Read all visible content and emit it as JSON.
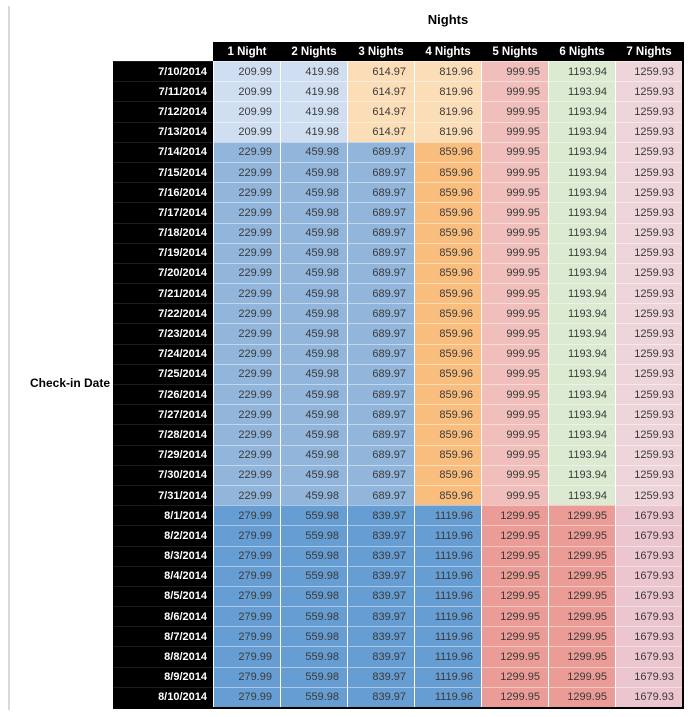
{
  "chart_data": {
    "type": "table",
    "title": "Nights",
    "side_label": "Check-in Date",
    "columns": [
      "1 Night",
      "2 Nights",
      "3 Nights",
      "4 Nights",
      "5 Nights",
      "6 Nights",
      "7 Nights"
    ],
    "header_bg": "#000000",
    "header_text_color": "#ffffff",
    "value_text_color": "#3a3a3a",
    "color_groups": {
      "early_july": [
        "#cfdff1",
        "#cfdff1",
        "#fbddb8",
        "#fbddb8",
        "#f0bfbc",
        "#dcead2",
        "#eed5da"
      ],
      "mid_july": [
        "#92b5db",
        "#92b5db",
        "#92b5db",
        "#f9be7e",
        "#f0bfbc",
        "#dcead2",
        "#eed5da"
      ],
      "august": [
        "#669dd2",
        "#669dd2",
        "#669dd2",
        "#669dd2",
        "#ec9c96",
        "#ec9c96",
        "#ecc6ce"
      ]
    },
    "rows": [
      {
        "date": "7/10/2014",
        "group": "early_july",
        "values": [
          209.99,
          419.98,
          614.97,
          819.96,
          999.95,
          1193.94,
          1259.93
        ]
      },
      {
        "date": "7/11/2014",
        "group": "early_july",
        "values": [
          209.99,
          419.98,
          614.97,
          819.96,
          999.95,
          1193.94,
          1259.93
        ]
      },
      {
        "date": "7/12/2014",
        "group": "early_july",
        "values": [
          209.99,
          419.98,
          614.97,
          819.96,
          999.95,
          1193.94,
          1259.93
        ]
      },
      {
        "date": "7/13/2014",
        "group": "early_july",
        "values": [
          209.99,
          419.98,
          614.97,
          819.96,
          999.95,
          1193.94,
          1259.93
        ]
      },
      {
        "date": "7/14/2014",
        "group": "mid_july",
        "values": [
          229.99,
          459.98,
          689.97,
          859.96,
          999.95,
          1193.94,
          1259.93
        ]
      },
      {
        "date": "7/15/2014",
        "group": "mid_july",
        "values": [
          229.99,
          459.98,
          689.97,
          859.96,
          999.95,
          1193.94,
          1259.93
        ]
      },
      {
        "date": "7/16/2014",
        "group": "mid_july",
        "values": [
          229.99,
          459.98,
          689.97,
          859.96,
          999.95,
          1193.94,
          1259.93
        ]
      },
      {
        "date": "7/17/2014",
        "group": "mid_july",
        "values": [
          229.99,
          459.98,
          689.97,
          859.96,
          999.95,
          1193.94,
          1259.93
        ]
      },
      {
        "date": "7/18/2014",
        "group": "mid_july",
        "values": [
          229.99,
          459.98,
          689.97,
          859.96,
          999.95,
          1193.94,
          1259.93
        ]
      },
      {
        "date": "7/19/2014",
        "group": "mid_july",
        "values": [
          229.99,
          459.98,
          689.97,
          859.96,
          999.95,
          1193.94,
          1259.93
        ]
      },
      {
        "date": "7/20/2014",
        "group": "mid_july",
        "values": [
          229.99,
          459.98,
          689.97,
          859.96,
          999.95,
          1193.94,
          1259.93
        ]
      },
      {
        "date": "7/21/2014",
        "group": "mid_july",
        "values": [
          229.99,
          459.98,
          689.97,
          859.96,
          999.95,
          1193.94,
          1259.93
        ]
      },
      {
        "date": "7/22/2014",
        "group": "mid_july",
        "values": [
          229.99,
          459.98,
          689.97,
          859.96,
          999.95,
          1193.94,
          1259.93
        ]
      },
      {
        "date": "7/23/2014",
        "group": "mid_july",
        "values": [
          229.99,
          459.98,
          689.97,
          859.96,
          999.95,
          1193.94,
          1259.93
        ]
      },
      {
        "date": "7/24/2014",
        "group": "mid_july",
        "values": [
          229.99,
          459.98,
          689.97,
          859.96,
          999.95,
          1193.94,
          1259.93
        ]
      },
      {
        "date": "7/25/2014",
        "group": "mid_july",
        "values": [
          229.99,
          459.98,
          689.97,
          859.96,
          999.95,
          1193.94,
          1259.93
        ]
      },
      {
        "date": "7/26/2014",
        "group": "mid_july",
        "values": [
          229.99,
          459.98,
          689.97,
          859.96,
          999.95,
          1193.94,
          1259.93
        ]
      },
      {
        "date": "7/27/2014",
        "group": "mid_july",
        "values": [
          229.99,
          459.98,
          689.97,
          859.96,
          999.95,
          1193.94,
          1259.93
        ]
      },
      {
        "date": "7/28/2014",
        "group": "mid_july",
        "values": [
          229.99,
          459.98,
          689.97,
          859.96,
          999.95,
          1193.94,
          1259.93
        ]
      },
      {
        "date": "7/29/2014",
        "group": "mid_july",
        "values": [
          229.99,
          459.98,
          689.97,
          859.96,
          999.95,
          1193.94,
          1259.93
        ]
      },
      {
        "date": "7/30/2014",
        "group": "mid_july",
        "values": [
          229.99,
          459.98,
          689.97,
          859.96,
          999.95,
          1193.94,
          1259.93
        ]
      },
      {
        "date": "7/31/2014",
        "group": "mid_july",
        "values": [
          229.99,
          459.98,
          689.97,
          859.96,
          999.95,
          1193.94,
          1259.93
        ]
      },
      {
        "date": "8/1/2014",
        "group": "august",
        "values": [
          279.99,
          559.98,
          839.97,
          1119.96,
          1299.95,
          1299.95,
          1679.93
        ]
      },
      {
        "date": "8/2/2014",
        "group": "august",
        "values": [
          279.99,
          559.98,
          839.97,
          1119.96,
          1299.95,
          1299.95,
          1679.93
        ]
      },
      {
        "date": "8/3/2014",
        "group": "august",
        "values": [
          279.99,
          559.98,
          839.97,
          1119.96,
          1299.95,
          1299.95,
          1679.93
        ]
      },
      {
        "date": "8/4/2014",
        "group": "august",
        "values": [
          279.99,
          559.98,
          839.97,
          1119.96,
          1299.95,
          1299.95,
          1679.93
        ]
      },
      {
        "date": "8/5/2014",
        "group": "august",
        "values": [
          279.99,
          559.98,
          839.97,
          1119.96,
          1299.95,
          1299.95,
          1679.93
        ]
      },
      {
        "date": "8/6/2014",
        "group": "august",
        "values": [
          279.99,
          559.98,
          839.97,
          1119.96,
          1299.95,
          1299.95,
          1679.93
        ]
      },
      {
        "date": "8/7/2014",
        "group": "august",
        "values": [
          279.99,
          559.98,
          839.97,
          1119.96,
          1299.95,
          1299.95,
          1679.93
        ]
      },
      {
        "date": "8/8/2014",
        "group": "august",
        "values": [
          279.99,
          559.98,
          839.97,
          1119.96,
          1299.95,
          1299.95,
          1679.93
        ]
      },
      {
        "date": "8/9/2014",
        "group": "august",
        "values": [
          279.99,
          559.98,
          839.97,
          1119.96,
          1299.95,
          1299.95,
          1679.93
        ]
      },
      {
        "date": "8/10/2014",
        "group": "august",
        "values": [
          279.99,
          559.98,
          839.97,
          1119.96,
          1299.95,
          1299.95,
          1679.93
        ]
      }
    ]
  }
}
